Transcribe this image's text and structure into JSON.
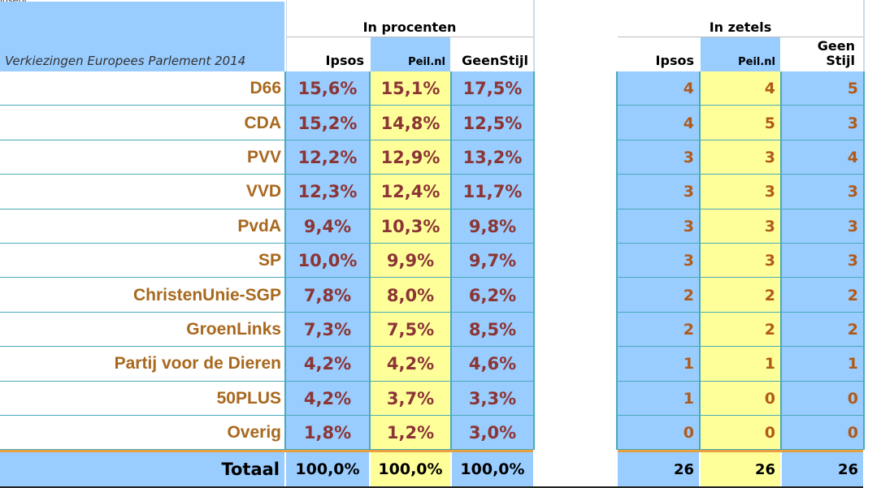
{
  "top_note": "igsepi",
  "chart_data": {
    "type": "table",
    "title": "Verkiezingen Europees Parlement 2014",
    "groups": [
      {
        "label": "In procenten",
        "columns": [
          "Ipsos",
          "Peil.nl",
          "GeenStijl"
        ]
      },
      {
        "label": "In zetels",
        "columns": [
          "Ipsos",
          "Peil.nl",
          "Geen Stijl"
        ]
      }
    ],
    "rows": [
      {
        "party": "D66",
        "percent": [
          "15,6%",
          "15,1%",
          "17,5%"
        ],
        "seats": [
          4,
          4,
          5
        ]
      },
      {
        "party": "CDA",
        "percent": [
          "15,2%",
          "14,8%",
          "12,5%"
        ],
        "seats": [
          4,
          5,
          3
        ]
      },
      {
        "party": "PVV",
        "percent": [
          "12,2%",
          "12,9%",
          "13,2%"
        ],
        "seats": [
          3,
          3,
          4
        ]
      },
      {
        "party": "VVD",
        "percent": [
          "12,3%",
          "12,4%",
          "11,7%"
        ],
        "seats": [
          3,
          3,
          3
        ]
      },
      {
        "party": "PvdA",
        "percent": [
          "9,4%",
          "10,3%",
          "9,8%"
        ],
        "seats": [
          3,
          3,
          3
        ]
      },
      {
        "party": "SP",
        "percent": [
          "10,0%",
          "9,9%",
          "9,7%"
        ],
        "seats": [
          3,
          3,
          3
        ]
      },
      {
        "party": "ChristenUnie-SGP",
        "percent": [
          "7,8%",
          "8,0%",
          "6,2%"
        ],
        "seats": [
          2,
          2,
          2
        ]
      },
      {
        "party": "GroenLinks",
        "percent": [
          "7,3%",
          "7,5%",
          "8,5%"
        ],
        "seats": [
          2,
          2,
          2
        ]
      },
      {
        "party": "Partij voor de Dieren",
        "percent": [
          "4,2%",
          "4,2%",
          "4,6%"
        ],
        "seats": [
          1,
          1,
          1
        ]
      },
      {
        "party": "50PLUS",
        "percent": [
          "4,2%",
          "3,7%",
          "3,3%"
        ],
        "seats": [
          1,
          0,
          0
        ]
      },
      {
        "party": "Overig",
        "percent": [
          "1,8%",
          "1,2%",
          "3,0%"
        ],
        "seats": [
          0,
          0,
          0
        ]
      }
    ],
    "total": {
      "label": "Totaal",
      "percent": [
        "100,0%",
        "100,0%",
        "100,0%"
      ],
      "seats": [
        26,
        26,
        26
      ]
    },
    "colors": {
      "blue": "#99ccff",
      "yellow": "#ffff99",
      "party_text": "#a8681e",
      "percent_text": "#8b3535",
      "seat_text": "#b05a1a",
      "total_rule": "#e8a040",
      "grid": "#4aaab8"
    }
  }
}
